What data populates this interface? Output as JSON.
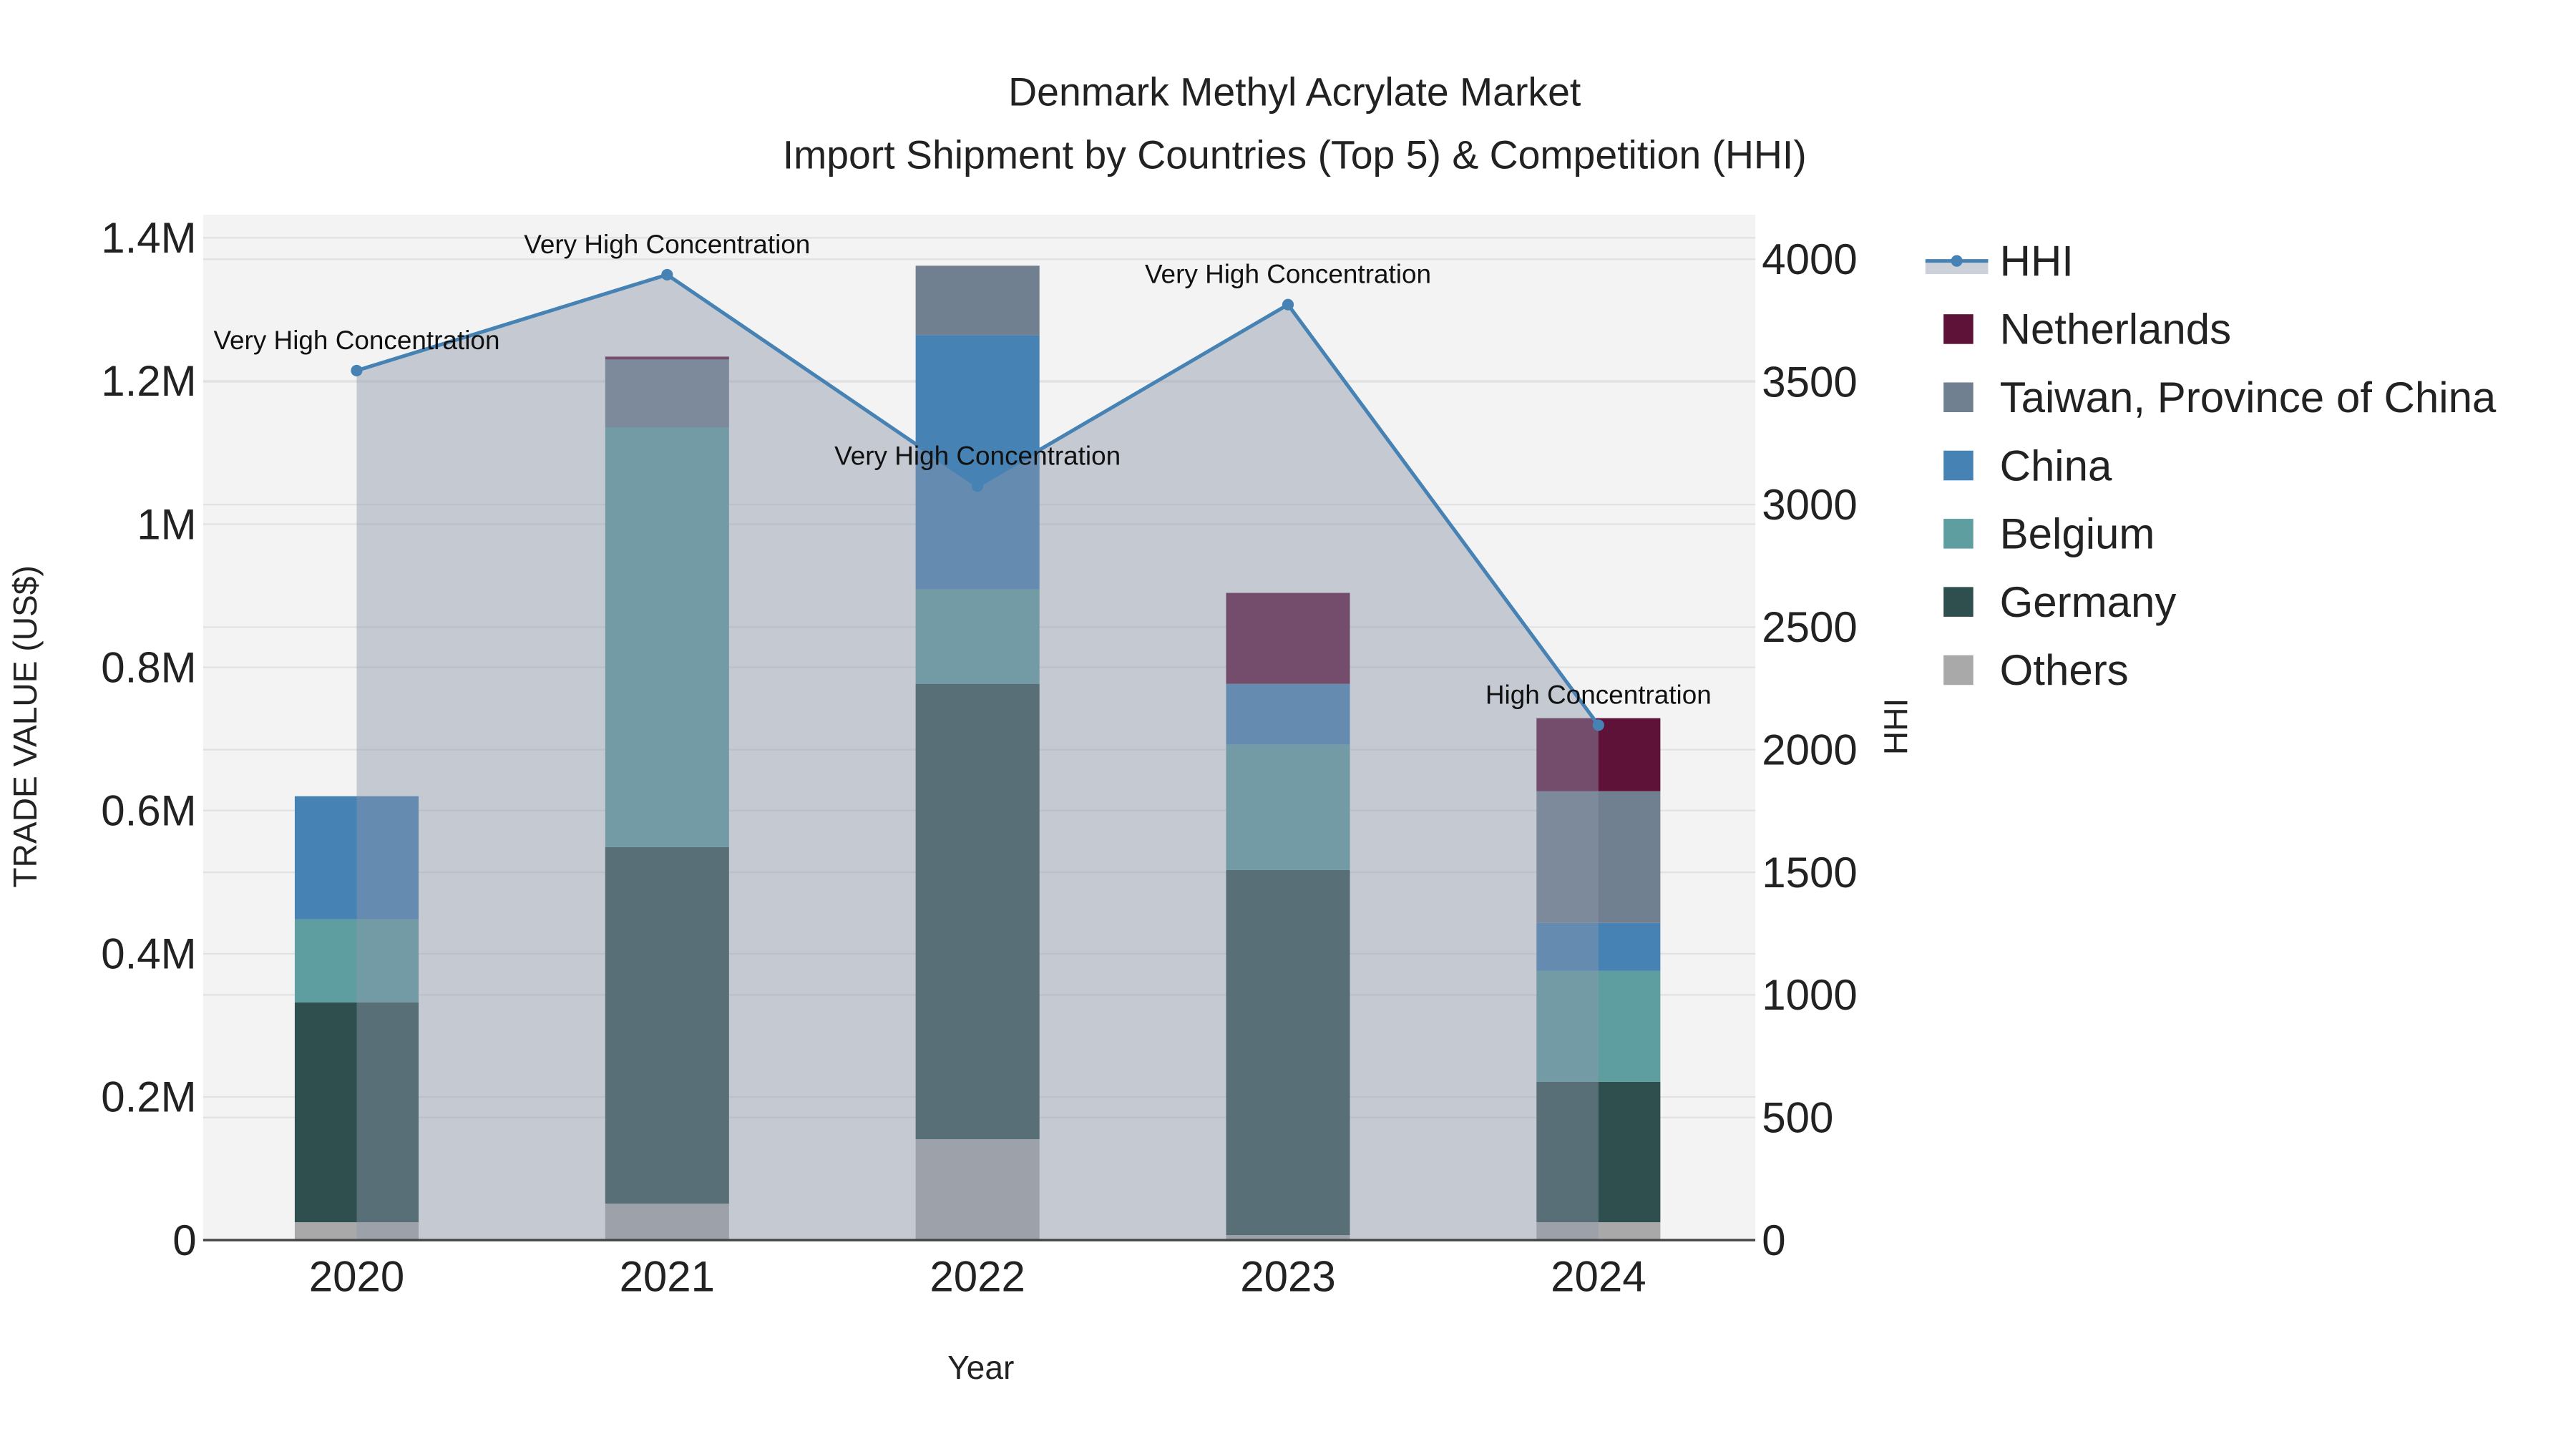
{
  "chart_data": {
    "type": "bar",
    "stacked": true,
    "title": "Denmark Methyl Acrylate Market",
    "subtitle": "Import Shipment by Countries (Top 5) & Competition (HHI)",
    "xlabel": "Year",
    "ylabel": "TRADE VALUE (US$)",
    "y2label": "HHI",
    "categories": [
      "2020",
      "2021",
      "2022",
      "2023",
      "2024"
    ],
    "ylim": [
      0,
      1400000
    ],
    "y_ticks": [
      0,
      200000,
      400000,
      600000,
      800000,
      1000000,
      1200000,
      1400000
    ],
    "y_tick_labels": [
      "0",
      "0.2M",
      "0.4M",
      "0.6M",
      "0.8M",
      "1M",
      "1.2M",
      "1.4M"
    ],
    "y2lim": [
      0,
      4000
    ],
    "y2_ticks": [
      0,
      500,
      1000,
      1500,
      2000,
      2500,
      3000,
      3500,
      4000
    ],
    "y2_tick_labels": [
      "0",
      "500",
      "1000",
      "1500",
      "2000",
      "2500",
      "3000",
      "3500",
      "4000"
    ],
    "grid": true,
    "legend_placement": "right",
    "series": [
      {
        "name": "Others",
        "color": "#a9a9a9",
        "values": [
          25000,
          51000,
          141000,
          7000,
          25000
        ]
      },
      {
        "name": "Germany",
        "color": "#2f4f4f",
        "values": [
          307000,
          498000,
          636000,
          510000,
          196000
        ]
      },
      {
        "name": "Belgium",
        "color": "#5f9ea0",
        "values": [
          116000,
          586000,
          132000,
          175000,
          155000
        ]
      },
      {
        "name": "China",
        "color": "#4682b4",
        "values": [
          172000,
          0,
          355000,
          85000,
          67000
        ]
      },
      {
        "name": "Taiwan, Province of China",
        "color": "#708090",
        "values": [
          0,
          95000,
          97000,
          0,
          184000
        ]
      },
      {
        "name": "Netherlands",
        "color": "#5f1237",
        "values": [
          0,
          4000,
          0,
          127000,
          102000
        ]
      }
    ],
    "hhi": {
      "name": "HHI",
      "color": "#4682b4",
      "values": [
        3546,
        3937,
        3075,
        3815,
        2100
      ],
      "annotations": [
        "Very High Concentration",
        "Very High Concentration",
        "Very High Concentration",
        "Very High Concentration",
        "High Concentration"
      ]
    },
    "legend": [
      "HHI",
      "Netherlands",
      "Taiwan, Province of China",
      "China",
      "Belgium",
      "Germany",
      "Others"
    ]
  }
}
